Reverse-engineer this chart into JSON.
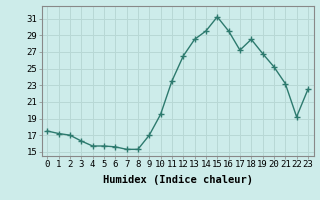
{
  "x": [
    0,
    1,
    2,
    3,
    4,
    5,
    6,
    7,
    8,
    9,
    10,
    11,
    12,
    13,
    14,
    15,
    16,
    17,
    18,
    19,
    20,
    21,
    22,
    23
  ],
  "y": [
    17.5,
    17.2,
    17.0,
    16.3,
    15.7,
    15.7,
    15.6,
    15.3,
    15.3,
    17.0,
    19.5,
    23.5,
    26.5,
    28.5,
    29.5,
    31.2,
    29.5,
    27.2,
    28.5,
    26.8,
    25.2,
    23.2,
    19.2,
    22.5
  ],
  "line_color": "#2d7a6e",
  "marker": "+",
  "marker_size": 4,
  "bg_color": "#cdecea",
  "grid_color": "#b8d8d5",
  "xlabel": "Humidex (Indice chaleur)",
  "xlim": [
    -0.5,
    23.5
  ],
  "ylim": [
    14.5,
    32.5
  ],
  "yticks": [
    15,
    17,
    19,
    21,
    23,
    25,
    27,
    29,
    31
  ],
  "xticks": [
    0,
    1,
    2,
    3,
    4,
    5,
    6,
    7,
    8,
    9,
    10,
    11,
    12,
    13,
    14,
    15,
    16,
    17,
    18,
    19,
    20,
    21,
    22,
    23
  ],
  "tick_label_size": 6.5,
  "xlabel_size": 7.5
}
